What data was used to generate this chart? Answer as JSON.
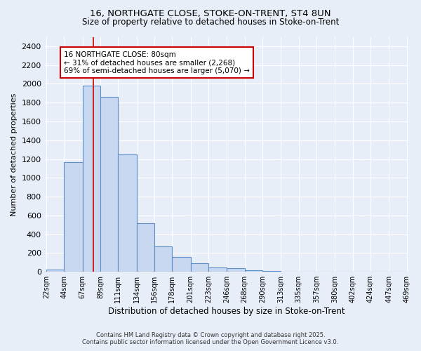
{
  "title_line1": "16, NORTHGATE CLOSE, STOKE-ON-TRENT, ST4 8UN",
  "title_line2": "Size of property relative to detached houses in Stoke-on-Trent",
  "xlabel": "Distribution of detached houses by size in Stoke-on-Trent",
  "ylabel": "Number of detached properties",
  "bar_values": [
    25,
    1170,
    1980,
    1860,
    1250,
    520,
    270,
    155,
    90,
    45,
    40,
    20,
    10,
    5,
    3,
    2,
    2,
    2,
    2,
    2
  ],
  "bin_edges": [
    22,
    44,
    67,
    89,
    111,
    134,
    156,
    178,
    201,
    223,
    246,
    268,
    290,
    313,
    335,
    357,
    380,
    402,
    424,
    447,
    469
  ],
  "bar_color": "#c8d8f0",
  "bar_edge_color": "#5b8fc9",
  "background_color": "#e8eef8",
  "grid_color": "#ffffff",
  "vline_x": 80,
  "vline_color": "#cc0000",
  "annotation_text": "16 NORTHGATE CLOSE: 80sqm\n← 31% of detached houses are smaller (2,268)\n69% of semi-detached houses are larger (5,070) →",
  "annotation_box_edge": "#cc0000",
  "annotation_fontsize": 7.5,
  "ylim": [
    0,
    2500
  ],
  "yticks": [
    0,
    200,
    400,
    600,
    800,
    1000,
    1200,
    1400,
    1600,
    1800,
    2000,
    2200,
    2400
  ],
  "footer_line1": "Contains HM Land Registry data © Crown copyright and database right 2025.",
  "footer_line2": "Contains public sector information licensed under the Open Government Licence v3.0.",
  "tick_labels": [
    "22sqm",
    "44sqm",
    "67sqm",
    "89sqm",
    "111sqm",
    "134sqm",
    "156sqm",
    "178sqm",
    "201sqm",
    "223sqm",
    "246sqm",
    "268sqm",
    "290sqm",
    "313sqm",
    "335sqm",
    "357sqm",
    "380sqm",
    "402sqm",
    "424sqm",
    "447sqm",
    "469sqm"
  ]
}
